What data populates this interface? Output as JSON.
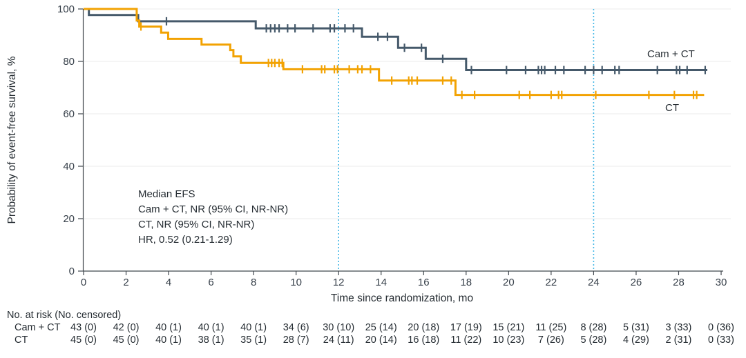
{
  "chart_data": {
    "type": "line",
    "variant": "kaplan_meier_step",
    "title": "",
    "xlabel": "Time since randomization, mo",
    "ylabel": "Probability of event-free survival, %",
    "xlim": [
      0,
      30
    ],
    "ylim": [
      0,
      100
    ],
    "xticks": [
      0,
      2,
      4,
      6,
      8,
      10,
      12,
      14,
      16,
      18,
      20,
      22,
      24,
      26,
      28,
      30
    ],
    "yticks": [
      0,
      20,
      40,
      60,
      80,
      100
    ],
    "grid": {
      "horizontal": true,
      "color": "#ebebeb"
    },
    "reference_lines": {
      "x": [
        12,
        24
      ],
      "style": "dotted",
      "color": "#41b6e6"
    },
    "annotation_lines": [
      "Median EFS",
      "Cam + CT, NR (95% CI, NR-NR)",
      "CT, NR (95% CI, NR-NR)",
      "HR, 0.52 (0.21-1.29)"
    ],
    "series": [
      {
        "name": "Cam + CT",
        "color": "#45596a",
        "end_time": 29.35,
        "steps_pct": [
          [
            0,
            100
          ],
          [
            0.25,
            97.7
          ],
          [
            2.57,
            95.3
          ],
          [
            8.1,
            92.6
          ],
          [
            13.1,
            89.4
          ],
          [
            14.8,
            85.2
          ],
          [
            16.1,
            81.0
          ],
          [
            18.0,
            76.7
          ]
        ],
        "censor_marks": [
          [
            3.9,
            95.3
          ],
          [
            8.6,
            92.6
          ],
          [
            8.8,
            92.6
          ],
          [
            9.0,
            92.6
          ],
          [
            9.2,
            92.6
          ],
          [
            9.6,
            92.6
          ],
          [
            9.95,
            92.6
          ],
          [
            10.8,
            92.6
          ],
          [
            11.6,
            92.6
          ],
          [
            11.8,
            92.6
          ],
          [
            12.3,
            92.6
          ],
          [
            12.7,
            92.6
          ],
          [
            13.85,
            89.4
          ],
          [
            14.3,
            89.4
          ],
          [
            15.1,
            85.2
          ],
          [
            15.9,
            85.2
          ],
          [
            16.9,
            81.0
          ],
          [
            18.25,
            76.7
          ],
          [
            19.9,
            76.7
          ],
          [
            20.8,
            76.7
          ],
          [
            21.4,
            76.7
          ],
          [
            21.55,
            76.7
          ],
          [
            21.7,
            76.7
          ],
          [
            22.2,
            76.7
          ],
          [
            22.6,
            76.7
          ],
          [
            23.6,
            76.7
          ],
          [
            24.0,
            76.7
          ],
          [
            24.4,
            76.7
          ],
          [
            25.0,
            76.7
          ],
          [
            25.2,
            76.7
          ],
          [
            27.0,
            76.7
          ],
          [
            27.9,
            76.7
          ],
          [
            28.05,
            76.7
          ],
          [
            28.4,
            76.7
          ],
          [
            29.25,
            76.7
          ]
        ]
      },
      {
        "name": "CT",
        "color": "#f2a202",
        "end_time": 29.2,
        "steps_pct": [
          [
            0,
            100
          ],
          [
            2.5,
            95.6
          ],
          [
            2.62,
            93.3
          ],
          [
            3.65,
            91.0
          ],
          [
            3.98,
            88.6
          ],
          [
            5.55,
            86.4
          ],
          [
            6.9,
            84.3
          ],
          [
            7.05,
            81.9
          ],
          [
            7.4,
            79.4
          ],
          [
            9.4,
            77.0
          ],
          [
            13.9,
            72.7
          ],
          [
            17.5,
            67.2
          ]
        ],
        "censor_marks": [
          [
            2.7,
            93.3
          ],
          [
            8.7,
            79.4
          ],
          [
            8.85,
            79.4
          ],
          [
            9.0,
            79.4
          ],
          [
            9.2,
            79.4
          ],
          [
            9.35,
            79.4
          ],
          [
            10.3,
            77.0
          ],
          [
            11.2,
            77.0
          ],
          [
            11.35,
            77.0
          ],
          [
            11.8,
            77.0
          ],
          [
            11.95,
            77.0
          ],
          [
            12.5,
            77.0
          ],
          [
            12.9,
            77.0
          ],
          [
            13.1,
            77.0
          ],
          [
            13.5,
            77.0
          ],
          [
            14.5,
            72.7
          ],
          [
            15.3,
            72.7
          ],
          [
            15.45,
            72.7
          ],
          [
            15.7,
            72.7
          ],
          [
            16.9,
            72.7
          ],
          [
            17.3,
            72.7
          ],
          [
            17.8,
            67.2
          ],
          [
            18.4,
            67.2
          ],
          [
            20.5,
            67.2
          ],
          [
            21.0,
            67.2
          ],
          [
            22.0,
            67.2
          ],
          [
            22.35,
            67.2
          ],
          [
            22.5,
            67.2
          ],
          [
            24.1,
            67.2
          ],
          [
            26.6,
            67.2
          ],
          [
            27.8,
            67.2
          ],
          [
            28.7,
            67.2
          ],
          [
            28.85,
            67.2
          ]
        ]
      }
    ],
    "risk_table": {
      "title": "No. at risk (No. censored)",
      "times": [
        0,
        2,
        4,
        6,
        8,
        10,
        12,
        14,
        16,
        18,
        20,
        22,
        24,
        26,
        28,
        30
      ],
      "rows": [
        {
          "label": "Cam + CT",
          "values": [
            "43 (0)",
            "42 (0)",
            "40 (1)",
            "40 (1)",
            "40 (1)",
            "34 (6)",
            "30 (10)",
            "25 (14)",
            "20 (18)",
            "17 (19)",
            "15 (21)",
            "11 (25)",
            "8 (28)",
            "5 (31)",
            "3 (33)",
            "0 (36)"
          ]
        },
        {
          "label": "CT",
          "values": [
            "45 (0)",
            "45 (0)",
            "40 (1)",
            "38 (1)",
            "35 (1)",
            "28 (7)",
            "24 (11)",
            "20 (14)",
            "16 (18)",
            "11 (22)",
            "10 (23)",
            "7 (26)",
            "5 (28)",
            "4 (29)",
            "2 (31)",
            "0 (33)"
          ]
        }
      ]
    }
  }
}
